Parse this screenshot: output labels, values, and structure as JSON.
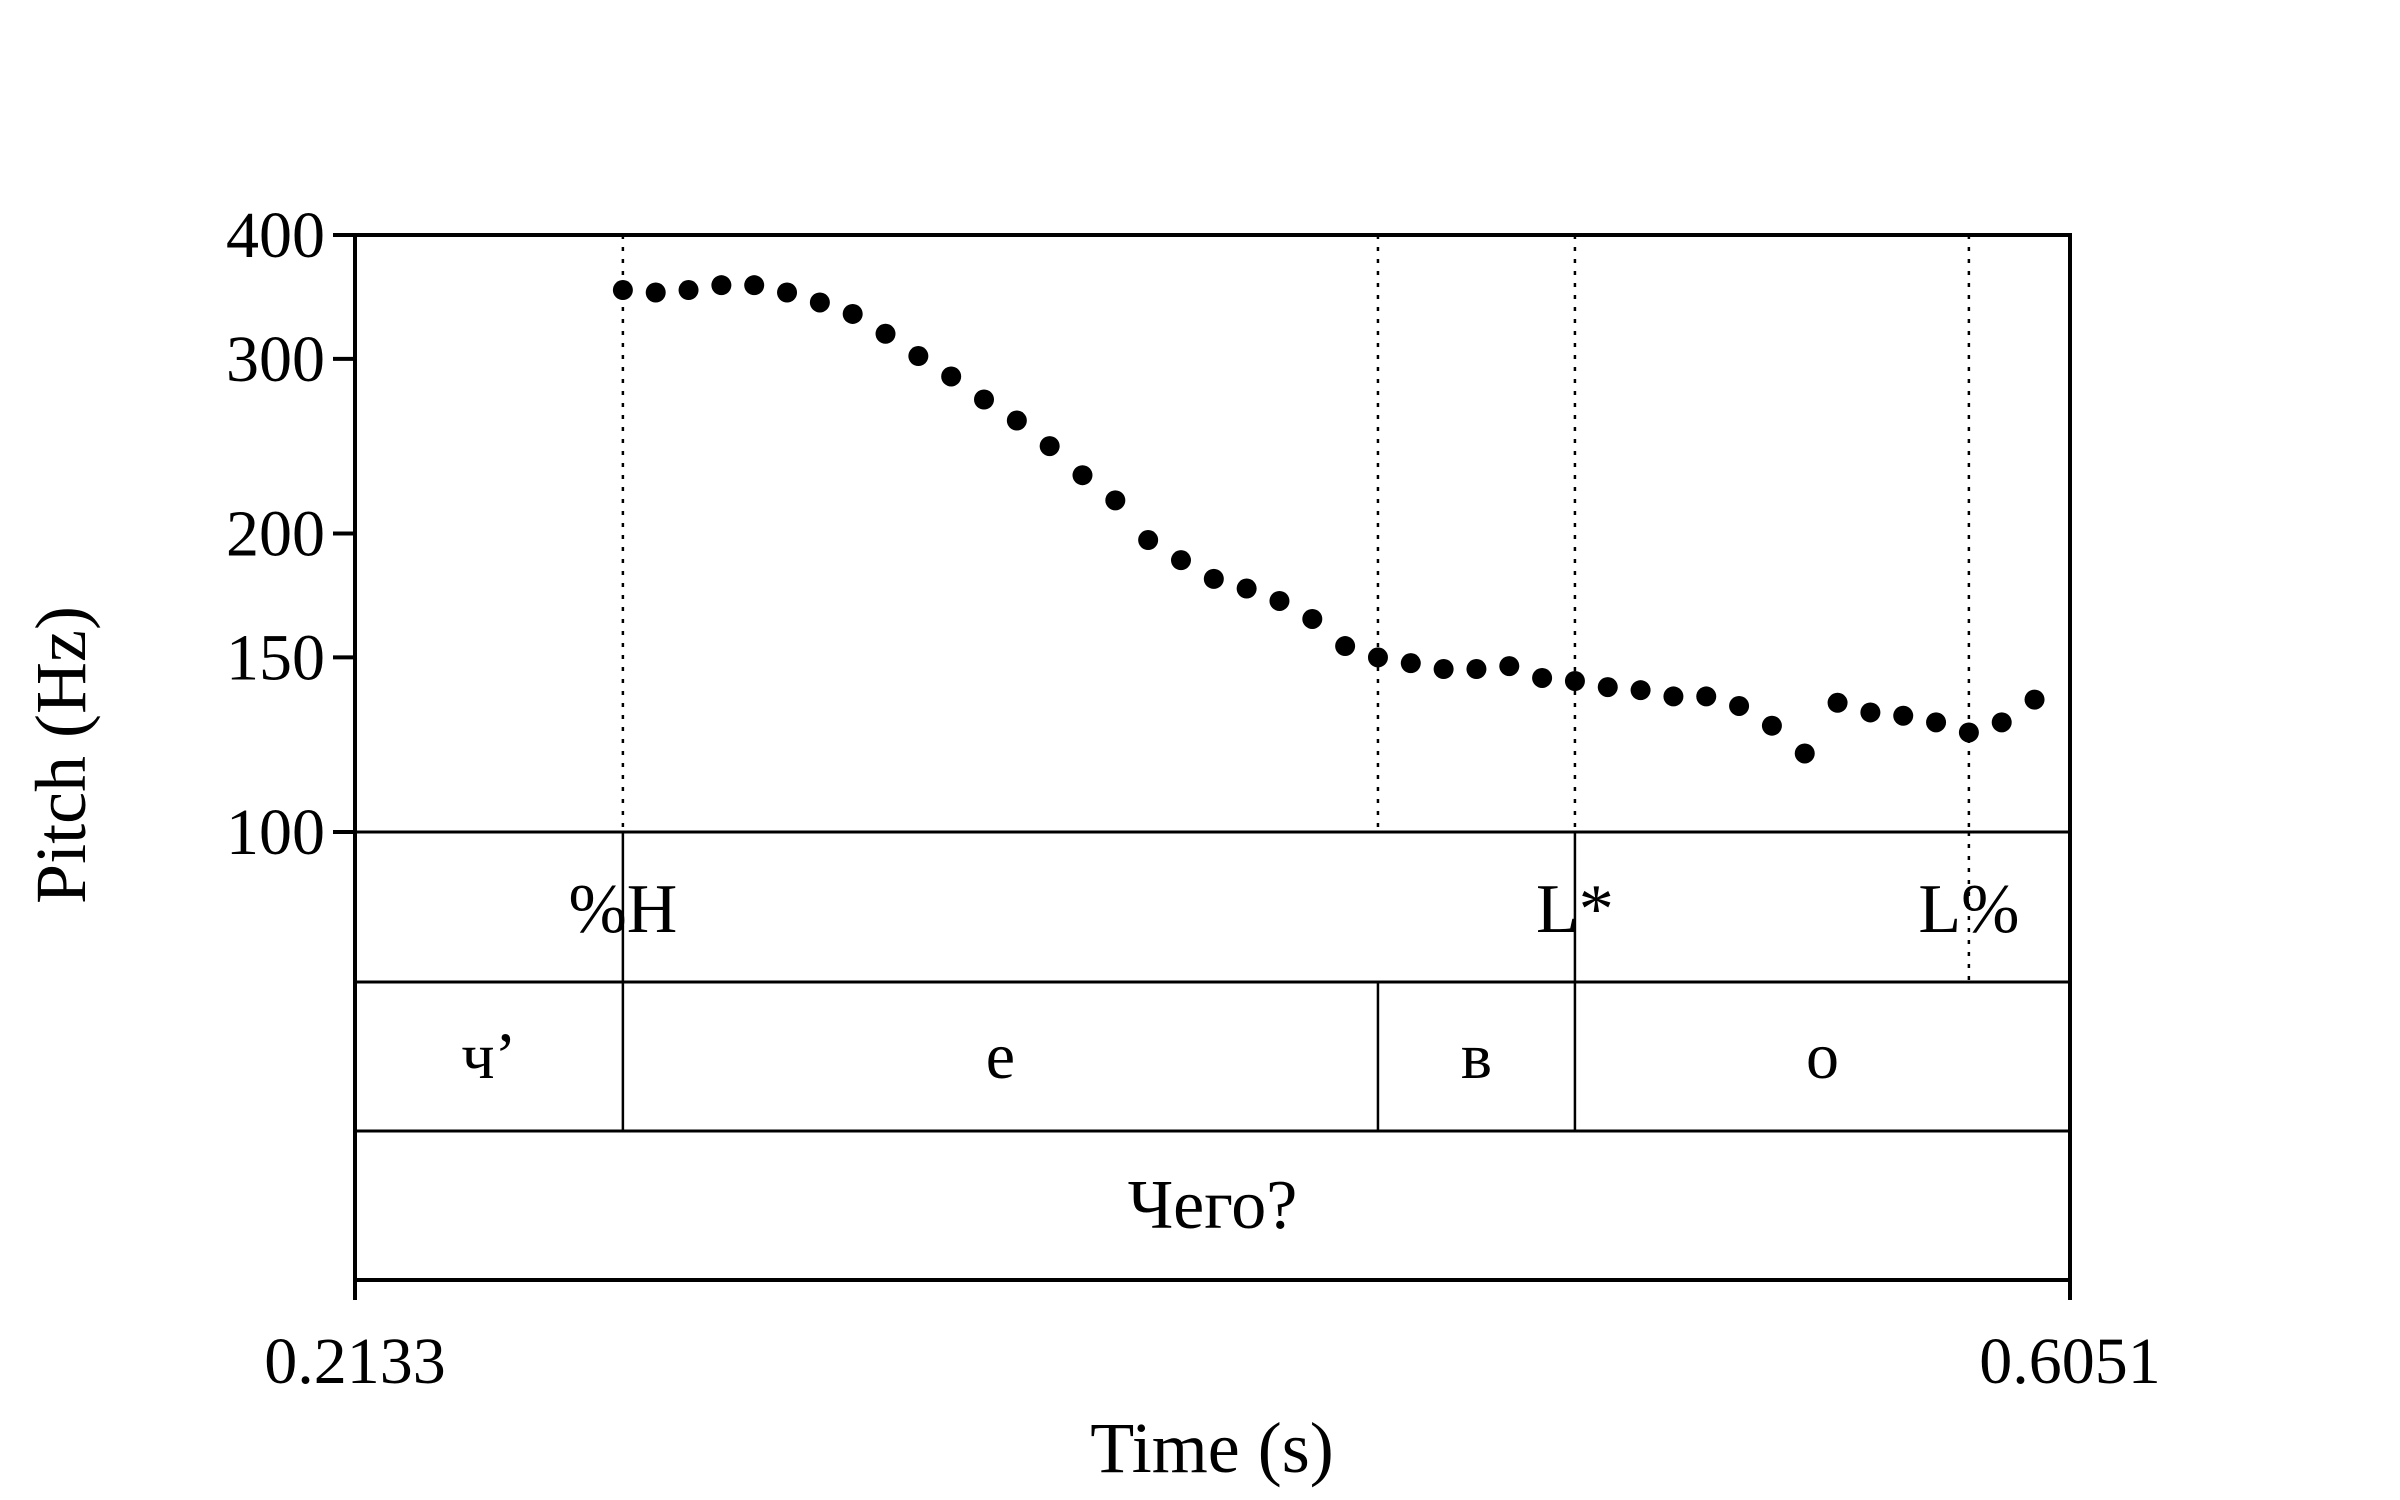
{
  "chart_data": {
    "type": "scatter",
    "title": "",
    "xlabel": "Time (s)",
    "ylabel": "Pitch (Hz)",
    "xlim": [
      0.2133,
      0.6051
    ],
    "ylim": [
      100,
      400
    ],
    "yscale": "log",
    "x_tick_labels": [
      "0.2133",
      "0.6051"
    ],
    "y_ticks": [
      100,
      150,
      200,
      300,
      400
    ],
    "y_tick_labels": [
      "100",
      "150",
      "200",
      "300",
      "400"
    ],
    "grid": false,
    "marker_color": "#000000",
    "points": [
      {
        "t": 0.2745,
        "f0": 352
      },
      {
        "t": 0.282,
        "f0": 350
      },
      {
        "t": 0.2895,
        "f0": 352
      },
      {
        "t": 0.297,
        "f0": 356
      },
      {
        "t": 0.3045,
        "f0": 356
      },
      {
        "t": 0.312,
        "f0": 350
      },
      {
        "t": 0.3195,
        "f0": 342
      },
      {
        "t": 0.327,
        "f0": 333
      },
      {
        "t": 0.3345,
        "f0": 318
      },
      {
        "t": 0.342,
        "f0": 302
      },
      {
        "t": 0.3495,
        "f0": 288
      },
      {
        "t": 0.357,
        "f0": 273
      },
      {
        "t": 0.3645,
        "f0": 260
      },
      {
        "t": 0.372,
        "f0": 245
      },
      {
        "t": 0.3795,
        "f0": 229
      },
      {
        "t": 0.387,
        "f0": 216
      },
      {
        "t": 0.3945,
        "f0": 197
      },
      {
        "t": 0.402,
        "f0": 188
      },
      {
        "t": 0.4095,
        "f0": 180
      },
      {
        "t": 0.417,
        "f0": 176
      },
      {
        "t": 0.4245,
        "f0": 171
      },
      {
        "t": 0.432,
        "f0": 164
      },
      {
        "t": 0.4395,
        "f0": 154
      },
      {
        "t": 0.447,
        "f0": 150
      },
      {
        "t": 0.4545,
        "f0": 148
      },
      {
        "t": 0.462,
        "f0": 146
      },
      {
        "t": 0.4695,
        "f0": 146
      },
      {
        "t": 0.477,
        "f0": 147
      },
      {
        "t": 0.4845,
        "f0": 143
      },
      {
        "t": 0.492,
        "f0": 142
      },
      {
        "t": 0.4995,
        "f0": 140
      },
      {
        "t": 0.507,
        "f0": 139
      },
      {
        "t": 0.5145,
        "f0": 137
      },
      {
        "t": 0.522,
        "f0": 137
      },
      {
        "t": 0.5295,
        "f0": 134
      },
      {
        "t": 0.537,
        "f0": 128
      },
      {
        "t": 0.5445,
        "f0": 120
      },
      {
        "t": 0.552,
        "f0": 135
      },
      {
        "t": 0.5595,
        "f0": 132
      },
      {
        "t": 0.567,
        "f0": 131
      },
      {
        "t": 0.5745,
        "f0": 129
      },
      {
        "t": 0.582,
        "f0": 126
      },
      {
        "t": 0.5895,
        "f0": 129
      },
      {
        "t": 0.597,
        "f0": 136
      }
    ],
    "boundaries": [
      0.2745,
      0.447,
      0.492,
      0.582
    ],
    "tiers": {
      "tones": [
        {
          "label": "%H",
          "t": 0.2745
        },
        {
          "label": "L*",
          "t": 0.492
        },
        {
          "label": "L%",
          "t": 0.582
        }
      ],
      "segments": [
        {
          "label": "ч’",
          "start": 0.2133,
          "end": 0.2745
        },
        {
          "label": "е",
          "start": 0.2745,
          "end": 0.447
        },
        {
          "label": "в",
          "start": 0.447,
          "end": 0.492
        },
        {
          "label": "о",
          "start": 0.492,
          "end": 0.6051
        }
      ],
      "words": [
        {
          "label": "Чего?",
          "start": 0.2133,
          "end": 0.6051
        }
      ]
    }
  }
}
